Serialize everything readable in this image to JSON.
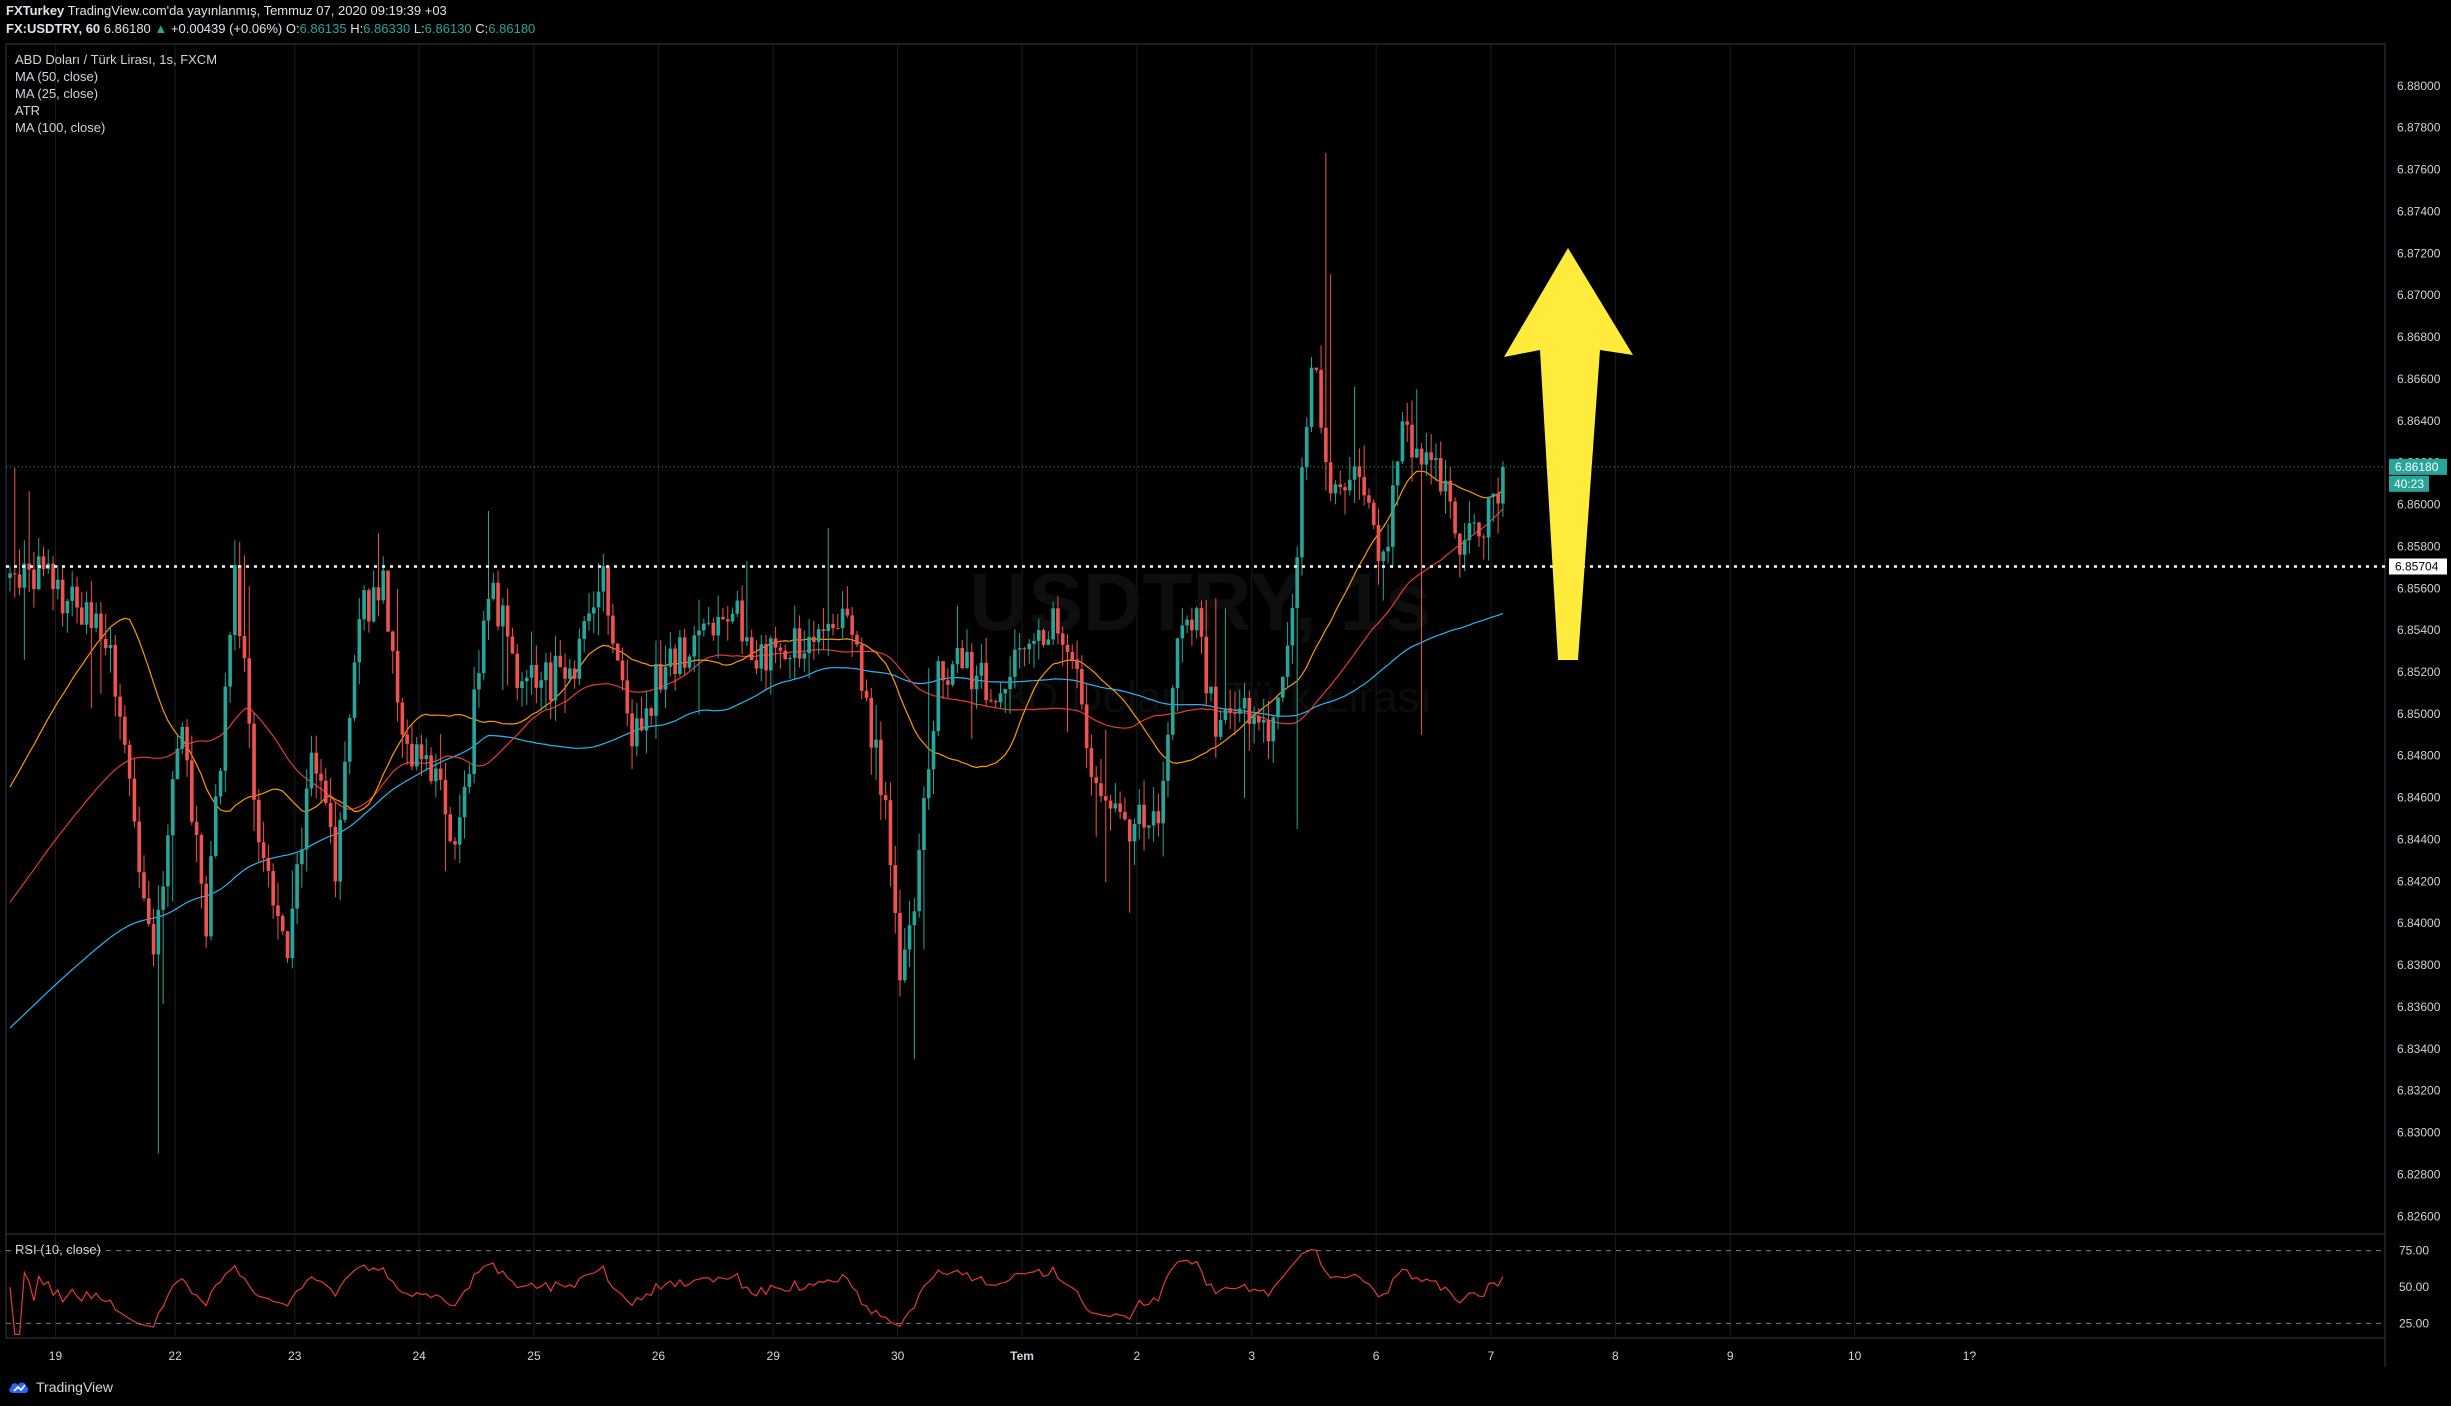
{
  "header": {
    "user": "FXTurkey",
    "published": "TradingView.com'da yayınlanmış, Temmuz 07, 2020 09:19:39 +03",
    "symbol": "FX:USDTRY, 60",
    "last": "6.86180",
    "change_arrow": "▲",
    "change": "+0.00439 (+0.06%)",
    "o_label": "O:",
    "o": "6.86135",
    "h_label": "H:",
    "h": "6.86330",
    "l_label": "L:",
    "l": "6.86130",
    "c_label": "C:",
    "c": "6.86180"
  },
  "legend": {
    "title": "ABD Doları / Türk Lirası, 1s, FXCM",
    "items": [
      "MA (50, close)",
      "MA (25, close)",
      "ATR",
      "MA (100, close)"
    ]
  },
  "rsi_label": "RSI (10, close)",
  "watermark": {
    "symbol": "USDTRY, 1s",
    "name": "ABD Doları / Türk Lirası"
  },
  "price_badges": {
    "last": "6.86180",
    "countdown": "40:23",
    "hline": "6.85704"
  },
  "footer": {
    "brand": "TradingView"
  },
  "colors": {
    "up": "#26a69a",
    "down": "#ef5350",
    "ma50": "#e65100",
    "ma25": "#ff9800",
    "ma100": "#29b6f6",
    "ma_red": "#e53935",
    "rsi": "#e53935",
    "arrow": "#ffeb3b",
    "background": "#000000"
  },
  "chart_data": {
    "type": "candlestick",
    "price_axis": {
      "range": [
        6.8252,
        6.882
      ],
      "ticks": [
        "6.88000",
        "6.87800",
        "6.87600",
        "6.87400",
        "6.87200",
        "6.87000",
        "6.86800",
        "6.86600",
        "6.86400",
        "6.86200",
        "6.86000",
        "6.85800",
        "6.85600",
        "6.85400",
        "6.85200",
        "6.85000",
        "6.84800",
        "6.84600",
        "6.84400",
        "6.84200",
        "6.84000",
        "6.83800",
        "6.83600",
        "6.83400",
        "6.83200",
        "6.83000",
        "6.82800",
        "6.82600"
      ]
    },
    "rsi_axis": {
      "range": [
        15,
        85
      ],
      "ticks": [
        "75.00",
        "50.00",
        "25.00"
      ]
    },
    "x_axis": {
      "ticks": [
        "19",
        "22",
        "23",
        "24",
        "25",
        "26",
        "29",
        "30",
        "Tem",
        "2",
        "3",
        "6",
        "7",
        "8",
        "9",
        "10",
        "1?"
      ]
    },
    "horizontal_line": 6.85704,
    "last_price": 6.8618,
    "annotation": "upward arrow",
    "anchors": [
      {
        "i": 0,
        "v": 6.8565
      },
      {
        "i": 5,
        "v": 6.857
      },
      {
        "i": 12,
        "v": 6.8555
      },
      {
        "i": 20,
        "v": 6.854
      },
      {
        "i": 26,
        "v": 6.8445
      },
      {
        "i": 30,
        "v": 6.839
      },
      {
        "i": 36,
        "v": 6.8495
      },
      {
        "i": 41,
        "v": 6.84
      },
      {
        "i": 47,
        "v": 6.8565
      },
      {
        "i": 52,
        "v": 6.8445
      },
      {
        "i": 58,
        "v": 6.838
      },
      {
        "i": 63,
        "v": 6.849
      },
      {
        "i": 68,
        "v": 6.8425
      },
      {
        "i": 73,
        "v": 6.8545
      },
      {
        "i": 78,
        "v": 6.8565
      },
      {
        "i": 83,
        "v": 6.848
      },
      {
        "i": 88,
        "v": 6.847
      },
      {
        "i": 94,
        "v": 6.844
      },
      {
        "i": 100,
        "v": 6.8565
      },
      {
        "i": 106,
        "v": 6.852
      },
      {
        "i": 112,
        "v": 6.8515
      },
      {
        "i": 118,
        "v": 6.8525
      },
      {
        "i": 124,
        "v": 6.8565
      },
      {
        "i": 130,
        "v": 6.849
      },
      {
        "i": 135,
        "v": 6.8515
      },
      {
        "i": 140,
        "v": 6.853
      },
      {
        "i": 146,
        "v": 6.8535
      },
      {
        "i": 152,
        "v": 6.8545
      },
      {
        "i": 158,
        "v": 6.8525
      },
      {
        "i": 164,
        "v": 6.853
      },
      {
        "i": 170,
        "v": 6.8545
      },
      {
        "i": 176,
        "v": 6.854
      },
      {
        "i": 183,
        "v": 6.8455
      },
      {
        "i": 186,
        "v": 6.8375
      },
      {
        "i": 189,
        "v": 6.841
      },
      {
        "i": 194,
        "v": 6.8525
      },
      {
        "i": 200,
        "v": 6.852
      },
      {
        "i": 206,
        "v": 6.851
      },
      {
        "i": 212,
        "v": 6.8535
      },
      {
        "i": 218,
        "v": 6.8545
      },
      {
        "i": 224,
        "v": 6.8505
      },
      {
        "i": 228,
        "v": 6.8455
      },
      {
        "i": 234,
        "v": 6.8445
      },
      {
        "i": 240,
        "v": 6.8455
      },
      {
        "i": 244,
        "v": 6.8535
      },
      {
        "i": 248,
        "v": 6.8545
      },
      {
        "i": 252,
        "v": 6.8495
      },
      {
        "i": 258,
        "v": 6.85
      },
      {
        "i": 262,
        "v": 6.849
      },
      {
        "i": 265,
        "v": 6.8505
      },
      {
        "i": 268,
        "v": 6.8555
      },
      {
        "i": 271,
        "v": 6.8645
      },
      {
        "i": 273,
        "v": 6.8665
      },
      {
        "i": 276,
        "v": 6.8605
      },
      {
        "i": 282,
        "v": 6.861
      },
      {
        "i": 287,
        "v": 6.857
      },
      {
        "i": 291,
        "v": 6.8635
      },
      {
        "i": 296,
        "v": 6.8625
      },
      {
        "i": 300,
        "v": 6.8605
      },
      {
        "i": 304,
        "v": 6.858
      },
      {
        "i": 310,
        "v": 6.86
      },
      {
        "i": 312,
        "v": 6.8618
      }
    ],
    "spikes": [
      {
        "i": 31,
        "low": 6.829
      },
      {
        "i": 275,
        "high": 6.8768
      },
      {
        "i": 276,
        "high": 6.871
      },
      {
        "i": 294,
        "high": 6.8655
      },
      {
        "i": 295,
        "low": 6.849
      },
      {
        "i": 189,
        "low": 6.8335
      },
      {
        "i": 269,
        "low": 6.8445
      },
      {
        "i": 234,
        "low": 6.8405
      }
    ],
    "day_breaks": [
      10,
      35,
      60,
      86,
      110,
      136,
      160,
      186,
      212,
      236,
      260,
      286,
      310,
      336,
      360,
      386
    ],
    "n_candles": 313
  }
}
